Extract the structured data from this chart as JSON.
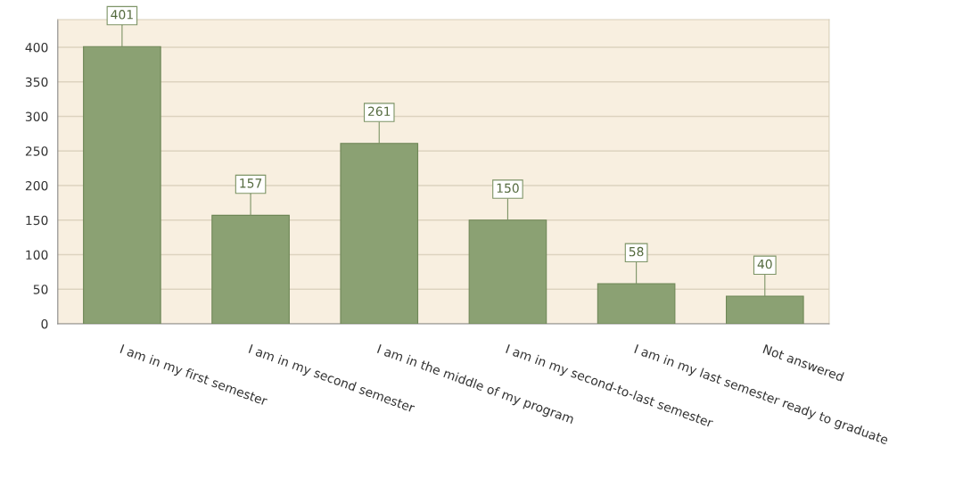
{
  "chart_data": {
    "type": "bar",
    "categories": [
      "I am in my first semester",
      "I am in my second semester",
      "I am in the middle of my program",
      "I am in my second-to-last semester",
      "I am in my last semester ready to graduate",
      "Not answered"
    ],
    "values": [
      401,
      157,
      261,
      150,
      58,
      40
    ],
    "color": "#8ba173",
    "ylim": [
      0,
      440
    ],
    "yticks": [
      0,
      50,
      100,
      150,
      200,
      250,
      300,
      350,
      400
    ],
    "grid": "y",
    "data_labels": true
  }
}
